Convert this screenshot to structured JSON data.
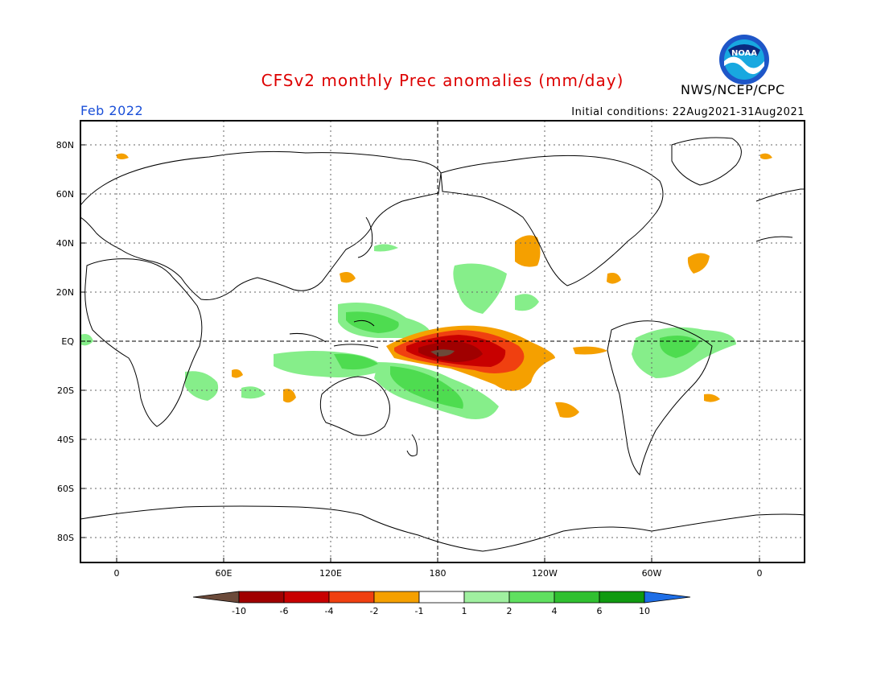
{
  "header": {
    "title": "CFSv2 monthly Prec anomalies (mm/day)",
    "agency": "NWS/NCEP/CPC",
    "period": "Feb 2022",
    "initial_conditions": "Initial conditions: 22Aug2021-31Aug2021"
  },
  "logo": {
    "text": "NOAA",
    "icon": "noaa-logo"
  },
  "map": {
    "lat_labels": [
      "80N",
      "60N",
      "40N",
      "20N",
      "EQ",
      "20S",
      "40S",
      "60S",
      "80S"
    ],
    "lon_labels": [
      "0",
      "60E",
      "120E",
      "180",
      "120W",
      "60W",
      "0"
    ],
    "grid": "dotted",
    "reference_lines": [
      "EQ",
      "180"
    ],
    "colors": {
      "coast": "#000000",
      "dry_lt2": "#f5a000",
      "dry_lt4": "#f04010",
      "dry_lt6": "#c80000",
      "dry_lt10": "#a00000",
      "dry_max": "#6b4a3a",
      "wet_gt2": "#86ee8a",
      "wet_gt4": "#4edc50",
      "wet_gt6": "#2cbf2c"
    }
  },
  "colorbar": {
    "labels": [
      "-10",
      "-6",
      "-4",
      "-2",
      "-1",
      "1",
      "2",
      "4",
      "6",
      "10"
    ],
    "colors": [
      "#6b4a3a",
      "#a00000",
      "#c80000",
      "#f04010",
      "#f5a000",
      "#ffffff",
      "#a0f0a0",
      "#60e060",
      "#30c030",
      "#109a10",
      "#1e6ee6"
    ]
  }
}
